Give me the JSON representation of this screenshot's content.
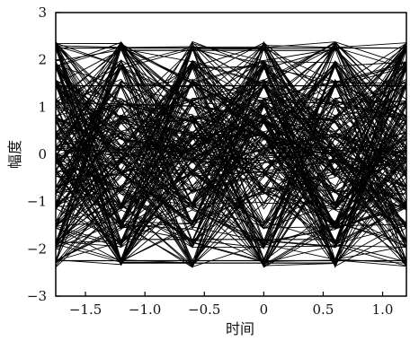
{
  "chart_data": {
    "type": "line",
    "title": "",
    "xlabel": "时间",
    "ylabel": "幅度",
    "xlim": [
      -1.75,
      1.2
    ],
    "ylim": [
      -3,
      3
    ],
    "x_ticks": [
      {
        "value": -1.5,
        "label": "−1.5"
      },
      {
        "value": -1.0,
        "label": "−1.0"
      },
      {
        "value": -0.5,
        "label": "−0.5"
      },
      {
        "value": 0,
        "label": "0"
      },
      {
        "value": 0.5,
        "label": "0.5"
      },
      {
        "value": 1.0,
        "label": "1.0"
      }
    ],
    "y_ticks": [
      {
        "value": 3,
        "label": "3"
      },
      {
        "value": 2,
        "label": "2"
      },
      {
        "value": 1,
        "label": "1"
      },
      {
        "value": 0,
        "label": "0"
      },
      {
        "value": -1,
        "label": "−1"
      },
      {
        "value": -2,
        "label": "−2"
      },
      {
        "value": -3,
        "label": "−3"
      }
    ],
    "grid": false,
    "x": [
      -1.75,
      -1.2,
      -0.6,
      0,
      0.6,
      1.2
    ],
    "amplitude_levels": [
      -2.3,
      -1.9,
      -1.5,
      -1.1,
      -0.75,
      -0.4,
      -0.1,
      0.1,
      0.4,
      0.75,
      1.1,
      1.5,
      1.9,
      2.3
    ],
    "trace_count": 260,
    "line_color": "#000000"
  }
}
